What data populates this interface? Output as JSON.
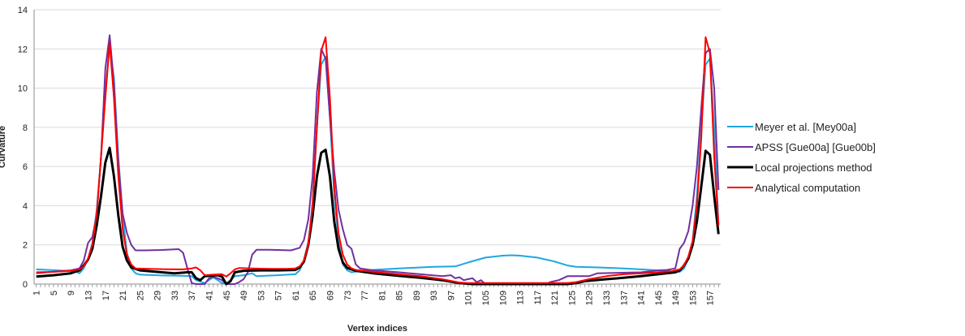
{
  "chart_data": {
    "type": "line",
    "title": "",
    "xlabel": "Vertex indices",
    "ylabel": "Curvature",
    "ylim": [
      0,
      14
    ],
    "yticks": [
      0,
      2,
      4,
      6,
      8,
      10,
      12,
      14
    ],
    "xlim": [
      1,
      159
    ],
    "xticks": [
      1,
      5,
      9,
      13,
      17,
      21,
      25,
      29,
      33,
      37,
      41,
      45,
      49,
      53,
      57,
      61,
      65,
      69,
      73,
      77,
      81,
      85,
      89,
      93,
      97,
      101,
      105,
      109,
      113,
      117,
      121,
      125,
      129,
      133,
      137,
      141,
      145,
      149,
      153,
      157
    ],
    "grid": true,
    "legend_position": "right",
    "series": [
      {
        "name": "Meyer et al. [Mey00a]",
        "color": "#1ea7e0",
        "points": [
          [
            1,
            0.75
          ],
          [
            6,
            0.7
          ],
          [
            10,
            0.65
          ],
          [
            11,
            0.55
          ],
          [
            12,
            0.8
          ],
          [
            13,
            1.3
          ],
          [
            14,
            2.1
          ],
          [
            15,
            3.8
          ],
          [
            16,
            6.5
          ],
          [
            17,
            9.8
          ],
          [
            18,
            12.2
          ],
          [
            19,
            10.5
          ],
          [
            20,
            6.5
          ],
          [
            21,
            3.5
          ],
          [
            22,
            1.6
          ],
          [
            23,
            0.8
          ],
          [
            24,
            0.55
          ],
          [
            25,
            0.48
          ],
          [
            30,
            0.44
          ],
          [
            35,
            0.42
          ],
          [
            37,
            0.4
          ],
          [
            38,
            0.2
          ],
          [
            40,
            0.05
          ],
          [
            42,
            0.35
          ],
          [
            44,
            0.05
          ],
          [
            45,
            0.0
          ],
          [
            47,
            0.4
          ],
          [
            49,
            0.45
          ],
          [
            51,
            0.55
          ],
          [
            52,
            0.4
          ],
          [
            57,
            0.45
          ],
          [
            61,
            0.5
          ],
          [
            62,
            0.7
          ],
          [
            63,
            1.2
          ],
          [
            64,
            2.1
          ],
          [
            65,
            4.2
          ],
          [
            66,
            8.0
          ],
          [
            67,
            11.2
          ],
          [
            68,
            11.6
          ],
          [
            69,
            8.5
          ],
          [
            70,
            4.5
          ],
          [
            71,
            2.2
          ],
          [
            72,
            1.0
          ],
          [
            73,
            0.7
          ],
          [
            74,
            0.6
          ],
          [
            77,
            0.7
          ],
          [
            85,
            0.8
          ],
          [
            93,
            0.88
          ],
          [
            98,
            0.9
          ],
          [
            101,
            1.1
          ],
          [
            105,
            1.35
          ],
          [
            109,
            1.45
          ],
          [
            111,
            1.47
          ],
          [
            113,
            1.45
          ],
          [
            117,
            1.35
          ],
          [
            121,
            1.15
          ],
          [
            124,
            0.95
          ],
          [
            126,
            0.88
          ],
          [
            131,
            0.85
          ],
          [
            137,
            0.8
          ],
          [
            141,
            0.75
          ],
          [
            145,
            0.7
          ],
          [
            148,
            0.65
          ],
          [
            150,
            0.62
          ],
          [
            151,
            0.8
          ],
          [
            152,
            1.3
          ],
          [
            153,
            2.2
          ],
          [
            154,
            4.5
          ],
          [
            155,
            8.0
          ],
          [
            156,
            11.2
          ],
          [
            157,
            11.5
          ],
          [
            158,
            8.0
          ],
          [
            159,
            3.0
          ]
        ]
      },
      {
        "name": "APSS [Gue00a] [Gue00b]",
        "color": "#7030a0",
        "points": [
          [
            1,
            0.55
          ],
          [
            6,
            0.65
          ],
          [
            9,
            0.7
          ],
          [
            11,
            0.8
          ],
          [
            12,
            1.2
          ],
          [
            13,
            2.1
          ],
          [
            14,
            2.4
          ],
          [
            15,
            3.5
          ],
          [
            16,
            6.5
          ],
          [
            17,
            11.0
          ],
          [
            18,
            12.7
          ],
          [
            19,
            10.2
          ],
          [
            20,
            6.2
          ],
          [
            21,
            3.6
          ],
          [
            22,
            2.6
          ],
          [
            23,
            2.0
          ],
          [
            24,
            1.72
          ],
          [
            26,
            1.72
          ],
          [
            30,
            1.74
          ],
          [
            34,
            1.78
          ],
          [
            35,
            1.6
          ],
          [
            36,
            0.8
          ],
          [
            37,
            0.05
          ],
          [
            38,
            0.0
          ],
          [
            40,
            0.0
          ],
          [
            41,
            0.3
          ],
          [
            42,
            0.35
          ],
          [
            43,
            0.3
          ],
          [
            44,
            0.2
          ],
          [
            45,
            0.0
          ],
          [
            47,
            0.0
          ],
          [
            48,
            0.1
          ],
          [
            49,
            0.25
          ],
          [
            50,
            0.6
          ],
          [
            51,
            1.5
          ],
          [
            52,
            1.75
          ],
          [
            55,
            1.75
          ],
          [
            60,
            1.72
          ],
          [
            62,
            1.85
          ],
          [
            63,
            2.25
          ],
          [
            64,
            3.3
          ],
          [
            65,
            5.5
          ],
          [
            66,
            9.8
          ],
          [
            67,
            12.0
          ],
          [
            68,
            11.5
          ],
          [
            69,
            8.5
          ],
          [
            70,
            5.8
          ],
          [
            71,
            3.8
          ],
          [
            72,
            2.8
          ],
          [
            73,
            2.0
          ],
          [
            74,
            1.8
          ],
          [
            75,
            1.0
          ],
          [
            76,
            0.8
          ],
          [
            79,
            0.7
          ],
          [
            85,
            0.6
          ],
          [
            90,
            0.5
          ],
          [
            95,
            0.4
          ],
          [
            97,
            0.45
          ],
          [
            98,
            0.3
          ],
          [
            99,
            0.35
          ],
          [
            100,
            0.2
          ],
          [
            101,
            0.25
          ],
          [
            102,
            0.3
          ],
          [
            103,
            0.1
          ],
          [
            104,
            0.2
          ],
          [
            105,
            0.0
          ],
          [
            110,
            0.0
          ],
          [
            115,
            0.0
          ],
          [
            119,
            0.0
          ],
          [
            120,
            0.1
          ],
          [
            121,
            0.15
          ],
          [
            122,
            0.2
          ],
          [
            123,
            0.3
          ],
          [
            124,
            0.4
          ],
          [
            129,
            0.4
          ],
          [
            131,
            0.55
          ],
          [
            141,
            0.6
          ],
          [
            145,
            0.7
          ],
          [
            147,
            0.72
          ],
          [
            149,
            0.8
          ],
          [
            150,
            1.8
          ],
          [
            151,
            2.1
          ],
          [
            152,
            2.7
          ],
          [
            153,
            4.0
          ],
          [
            154,
            6.0
          ],
          [
            155,
            9.0
          ],
          [
            156,
            11.8
          ],
          [
            157,
            12.0
          ],
          [
            158,
            10.0
          ],
          [
            159,
            4.8
          ]
        ]
      },
      {
        "name": "Local projections method",
        "color": "#000000",
        "points": [
          [
            1,
            0.38
          ],
          [
            5,
            0.45
          ],
          [
            9,
            0.55
          ],
          [
            11,
            0.7
          ],
          [
            12,
            0.95
          ],
          [
            13,
            1.25
          ],
          [
            14,
            1.8
          ],
          [
            15,
            3.0
          ],
          [
            16,
            4.5
          ],
          [
            17,
            6.2
          ],
          [
            18,
            6.95
          ],
          [
            19,
            5.5
          ],
          [
            20,
            3.5
          ],
          [
            21,
            1.9
          ],
          [
            22,
            1.2
          ],
          [
            23,
            0.85
          ],
          [
            25,
            0.7
          ],
          [
            29,
            0.62
          ],
          [
            33,
            0.55
          ],
          [
            36,
            0.6
          ],
          [
            37,
            0.6
          ],
          [
            38,
            0.3
          ],
          [
            39,
            0.2
          ],
          [
            40,
            0.4
          ],
          [
            43,
            0.45
          ],
          [
            44,
            0.38
          ],
          [
            45,
            0.0
          ],
          [
            46,
            0.15
          ],
          [
            47,
            0.6
          ],
          [
            49,
            0.68
          ],
          [
            53,
            0.7
          ],
          [
            57,
            0.7
          ],
          [
            61,
            0.72
          ],
          [
            62,
            0.85
          ],
          [
            63,
            1.15
          ],
          [
            64,
            2.0
          ],
          [
            65,
            3.5
          ],
          [
            66,
            5.5
          ],
          [
            67,
            6.7
          ],
          [
            68,
            6.85
          ],
          [
            69,
            5.5
          ],
          [
            70,
            3.2
          ],
          [
            71,
            1.8
          ],
          [
            72,
            1.1
          ],
          [
            73,
            0.82
          ],
          [
            75,
            0.68
          ],
          [
            79,
            0.55
          ],
          [
            85,
            0.42
          ],
          [
            90,
            0.32
          ],
          [
            95,
            0.2
          ],
          [
            99,
            0.05
          ],
          [
            102,
            0.0
          ],
          [
            110,
            0.0
          ],
          [
            118,
            0.0
          ],
          [
            124,
            0.0
          ],
          [
            126,
            0.05
          ],
          [
            128,
            0.15
          ],
          [
            133,
            0.25
          ],
          [
            137,
            0.32
          ],
          [
            141,
            0.4
          ],
          [
            145,
            0.5
          ],
          [
            149,
            0.6
          ],
          [
            150,
            0.7
          ],
          [
            151,
            0.95
          ],
          [
            152,
            1.3
          ],
          [
            153,
            2.0
          ],
          [
            154,
            3.2
          ],
          [
            155,
            5.0
          ],
          [
            156,
            6.8
          ],
          [
            157,
            6.6
          ],
          [
            158,
            4.5
          ],
          [
            159,
            2.55
          ]
        ]
      },
      {
        "name": "Analytical computation",
        "color": "#ff0000",
        "points": [
          [
            1,
            0.6
          ],
          [
            5,
            0.62
          ],
          [
            9,
            0.68
          ],
          [
            11,
            0.75
          ],
          [
            12,
            0.9
          ],
          [
            13,
            1.3
          ],
          [
            14,
            2.0
          ],
          [
            15,
            3.6
          ],
          [
            16,
            6.5
          ],
          [
            17,
            9.5
          ],
          [
            18,
            12.3
          ],
          [
            19,
            9.5
          ],
          [
            20,
            5.5
          ],
          [
            21,
            2.8
          ],
          [
            22,
            1.5
          ],
          [
            23,
            1.0
          ],
          [
            24,
            0.8
          ],
          [
            27,
            0.78
          ],
          [
            31,
            0.76
          ],
          [
            35,
            0.75
          ],
          [
            37,
            0.8
          ],
          [
            38,
            0.85
          ],
          [
            39,
            0.7
          ],
          [
            40,
            0.45
          ],
          [
            42,
            0.48
          ],
          [
            44,
            0.5
          ],
          [
            45,
            0.38
          ],
          [
            46,
            0.55
          ],
          [
            47,
            0.75
          ],
          [
            48,
            0.82
          ],
          [
            51,
            0.8
          ],
          [
            55,
            0.78
          ],
          [
            59,
            0.78
          ],
          [
            61,
            0.8
          ],
          [
            62,
            0.9
          ],
          [
            63,
            1.2
          ],
          [
            64,
            2.0
          ],
          [
            65,
            4.0
          ],
          [
            66,
            8.0
          ],
          [
            67,
            11.9
          ],
          [
            68,
            12.6
          ],
          [
            69,
            9.5
          ],
          [
            70,
            5.0
          ],
          [
            71,
            2.6
          ],
          [
            72,
            1.5
          ],
          [
            73,
            1.0
          ],
          [
            74,
            0.8
          ],
          [
            75,
            0.72
          ],
          [
            79,
            0.62
          ],
          [
            85,
            0.5
          ],
          [
            90,
            0.4
          ],
          [
            95,
            0.25
          ],
          [
            99,
            0.08
          ],
          [
            101,
            0.05
          ],
          [
            110,
            0.05
          ],
          [
            118,
            0.05
          ],
          [
            124,
            0.05
          ],
          [
            126,
            0.1
          ],
          [
            129,
            0.25
          ],
          [
            133,
            0.4
          ],
          [
            137,
            0.5
          ],
          [
            141,
            0.55
          ],
          [
            145,
            0.6
          ],
          [
            148,
            0.65
          ],
          [
            150,
            0.75
          ],
          [
            151,
            0.95
          ],
          [
            152,
            1.4
          ],
          [
            153,
            2.2
          ],
          [
            154,
            4.0
          ],
          [
            155,
            7.5
          ],
          [
            156,
            12.6
          ],
          [
            157,
            11.8
          ],
          [
            158,
            6.5
          ],
          [
            159,
            3.0
          ]
        ]
      }
    ]
  }
}
